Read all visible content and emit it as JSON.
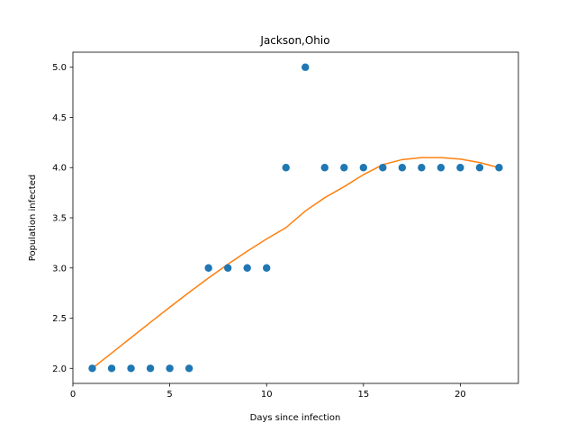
{
  "chart_data": {
    "type": "scatter",
    "title": "Jackson,Ohio",
    "xlabel": "Days since infection",
    "ylabel": "Population infected",
    "xlim": [
      0,
      23
    ],
    "ylim": [
      1.85,
      5.15
    ],
    "xticks": [
      0,
      5,
      10,
      15,
      20
    ],
    "yticks": [
      2.0,
      2.5,
      3.0,
      3.5,
      4.0,
      4.5,
      5.0
    ],
    "xtick_labels": [
      "0",
      "5",
      "10",
      "15",
      "20"
    ],
    "ytick_labels": [
      "2.0",
      "2.5",
      "3.0",
      "3.5",
      "4.0",
      "4.5",
      "5.0"
    ],
    "grid": false,
    "series": [
      {
        "kind": "scatter",
        "color": "#1f77b4",
        "x": [
          1,
          2,
          3,
          4,
          5,
          6,
          7,
          8,
          9,
          10,
          11,
          12,
          13,
          14,
          15,
          16,
          17,
          18,
          19,
          20,
          21,
          22
        ],
        "y": [
          2,
          2,
          2,
          2,
          2,
          2,
          3,
          3,
          3,
          3,
          4,
          5,
          4,
          4,
          4,
          4,
          4,
          4,
          4,
          4,
          4,
          4
        ]
      },
      {
        "kind": "line",
        "color": "#ff7f0e",
        "x": [
          1,
          2,
          3,
          4,
          5,
          6,
          7,
          8,
          9,
          10,
          11,
          12,
          13,
          14,
          15,
          16,
          17,
          18,
          19,
          20,
          21,
          22
        ],
        "y": [
          2.0,
          2.152,
          2.305,
          2.458,
          2.609,
          2.757,
          2.9,
          3.037,
          3.167,
          3.289,
          3.402,
          3.568,
          3.7,
          3.81,
          3.93,
          4.03,
          4.08,
          4.1,
          4.1,
          4.085,
          4.05,
          4.0
        ]
      }
    ]
  }
}
